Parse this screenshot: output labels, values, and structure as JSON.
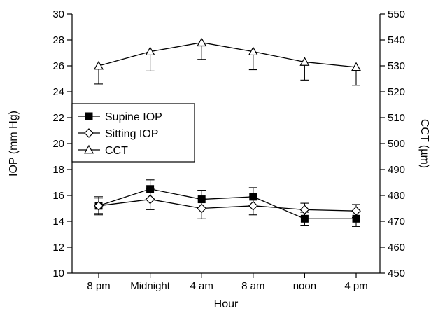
{
  "chart_data": {
    "type": "line",
    "categories": [
      "8 pm",
      "Midnight",
      "4 am",
      "8 am",
      "noon",
      "4 pm"
    ],
    "xlabel": "Hour",
    "ylabel_left": "IOP (mm Hg)",
    "ylabel_right": "CCT (µm)",
    "ylim_left": [
      10,
      30
    ],
    "yticks_left": [
      "10",
      "12",
      "14",
      "16",
      "18",
      "20",
      "22",
      "24",
      "26",
      "28",
      "30"
    ],
    "ylim_right": [
      450,
      550
    ],
    "yticks_right": [
      "450",
      "460",
      "470",
      "480",
      "490",
      "500",
      "510",
      "520",
      "530",
      "540",
      "550"
    ],
    "grid": false,
    "legend_position": "middle-left",
    "series": [
      {
        "name": "Supine IOP",
        "axis": "left",
        "marker": "filled-square",
        "values": [
          15.2,
          16.5,
          15.7,
          15.9,
          14.2,
          14.2
        ],
        "errors": [
          0.7,
          0.7,
          0.7,
          0.7,
          0.5,
          0.6
        ]
      },
      {
        "name": "Sitting IOP",
        "axis": "left",
        "marker": "open-diamond",
        "values": [
          15.2,
          15.7,
          15.0,
          15.2,
          14.9,
          14.8
        ],
        "errors": [
          0.6,
          0.8,
          0.8,
          0.7,
          0.5,
          0.5
        ]
      },
      {
        "name": "CCT",
        "axis": "right",
        "marker": "open-triangle",
        "values": [
          530,
          535.5,
          539,
          535.5,
          531.5,
          529.5
        ],
        "errors": [
          7,
          7.5,
          6.5,
          7,
          7,
          7
        ]
      }
    ]
  }
}
